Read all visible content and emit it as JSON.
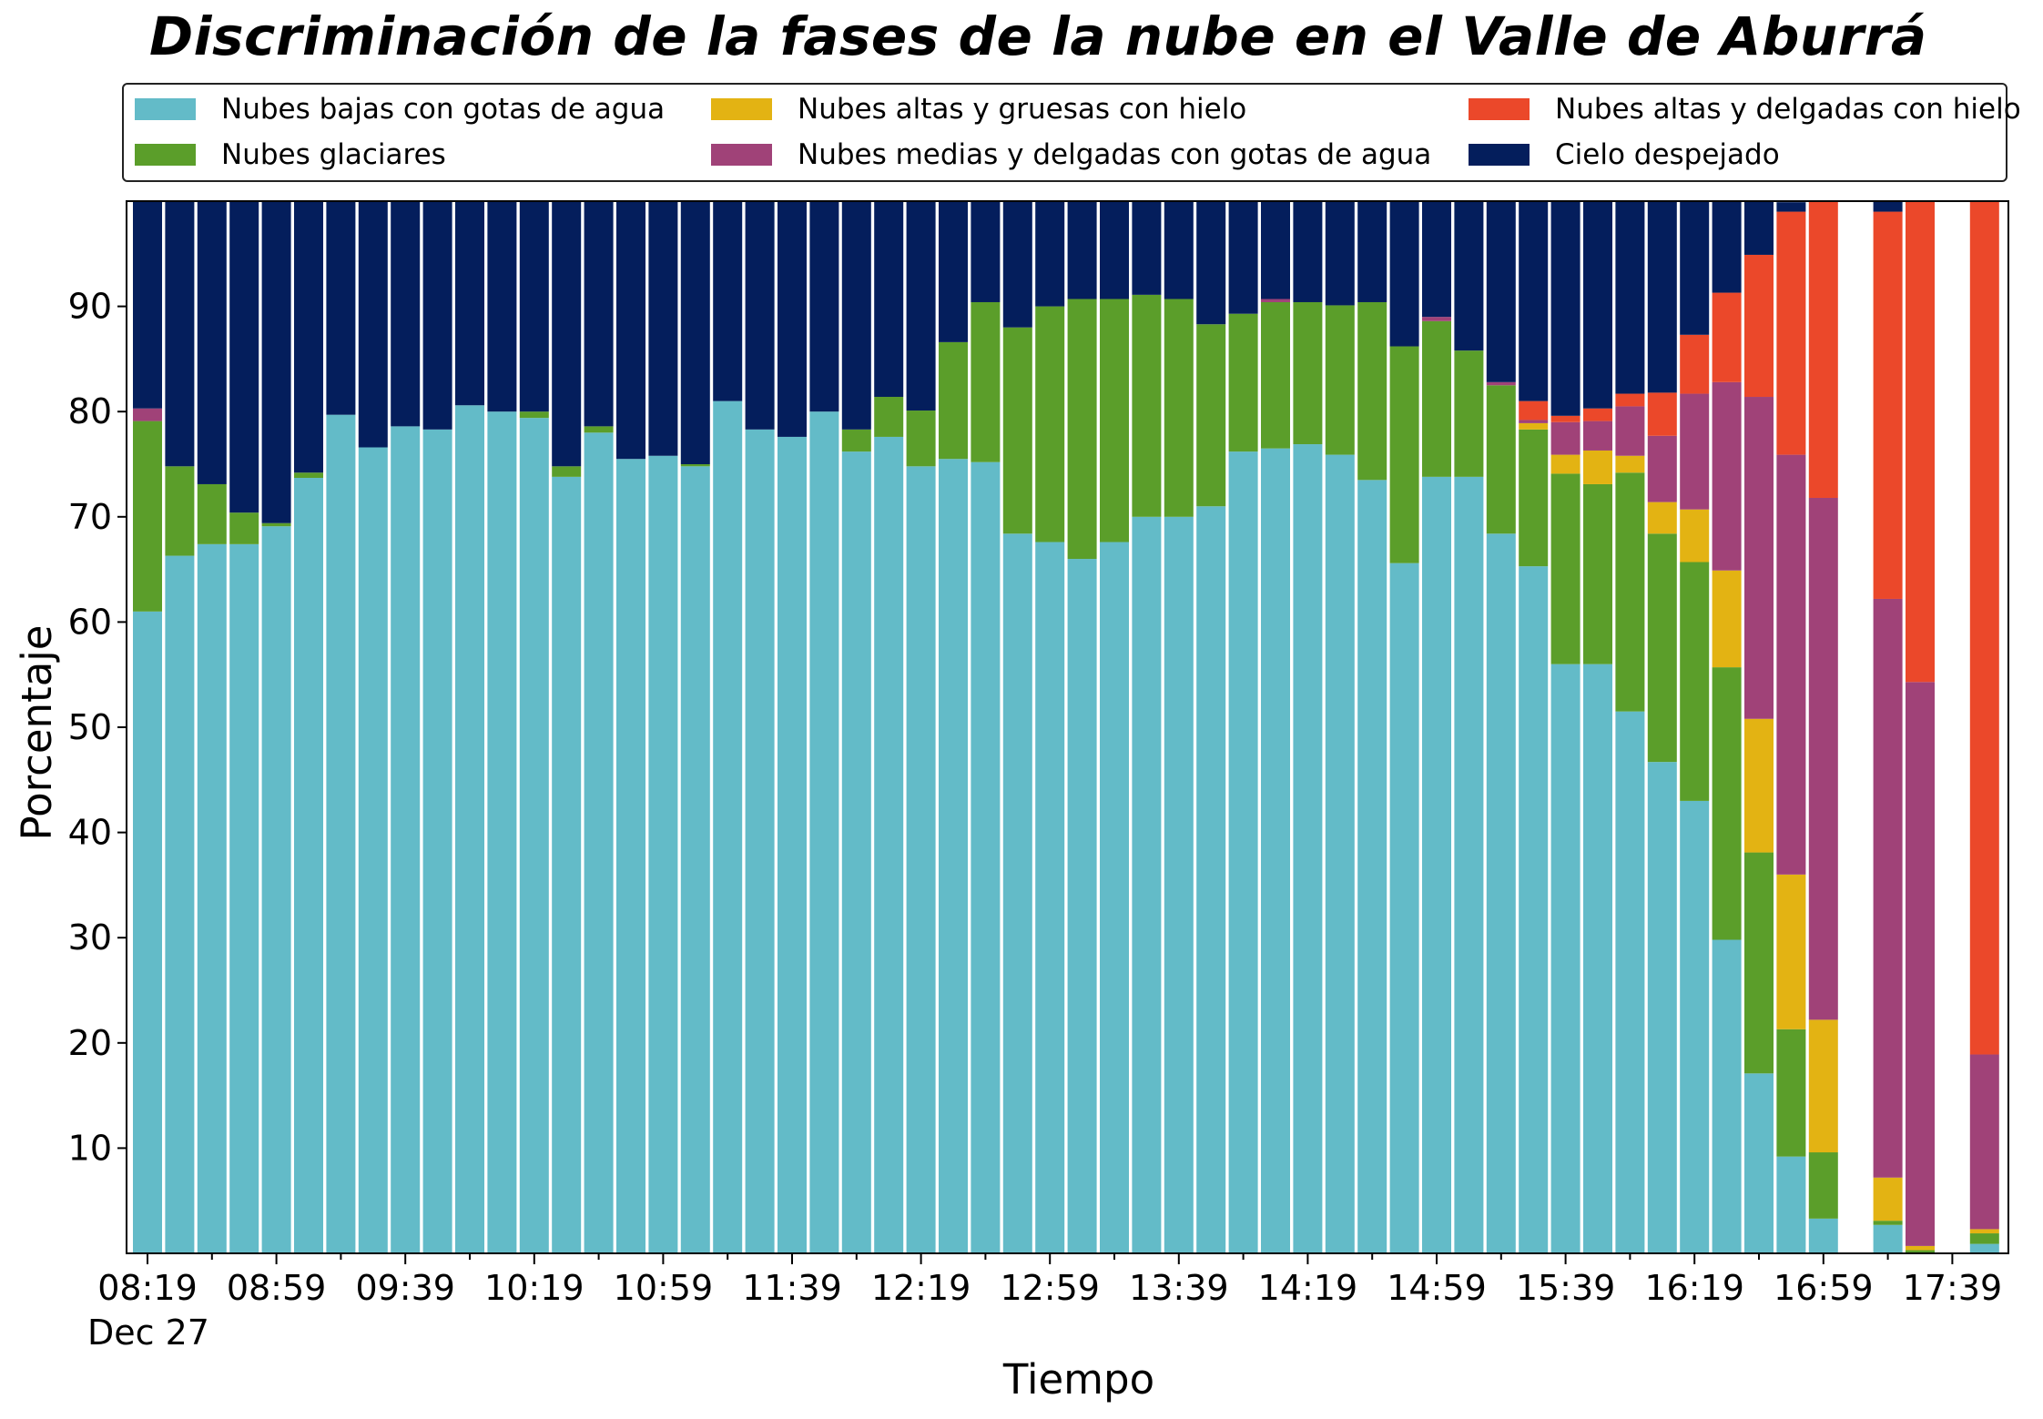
{
  "chart_data": {
    "type": "bar",
    "stacked": true,
    "title": "Discriminación de la fases de la nube en el Valle de Aburrá",
    "xlabel": "Tiempo",
    "ylabel": "Porcentaje",
    "ylim": [
      0,
      100
    ],
    "yticks": [
      10,
      20,
      30,
      40,
      50,
      60,
      70,
      80,
      90
    ],
    "date_label": "Dec 27",
    "xtick_labels": [
      "08:19",
      "08:59",
      "09:39",
      "10:19",
      "10:59",
      "11:39",
      "12:19",
      "12:59",
      "13:39",
      "14:19",
      "14:59",
      "15:39",
      "16:19",
      "16:59",
      "17:39"
    ],
    "grid": false,
    "legend_position": "top",
    "categories": [
      "08:19",
      "08:29",
      "08:39",
      "08:49",
      "08:59",
      "09:09",
      "09:19",
      "09:29",
      "09:39",
      "09:49",
      "09:59",
      "10:09",
      "10:19",
      "10:29",
      "10:39",
      "10:49",
      "10:59",
      "11:09",
      "11:19",
      "11:29",
      "11:39",
      "11:49",
      "11:59",
      "12:09",
      "12:19",
      "12:29",
      "12:39",
      "12:49",
      "12:59",
      "13:09",
      "13:19",
      "13:29",
      "13:39",
      "13:49",
      "13:59",
      "14:09",
      "14:19",
      "14:29",
      "14:39",
      "14:49",
      "14:59",
      "15:09",
      "15:19",
      "15:29",
      "15:39",
      "15:49",
      "15:59",
      "16:09",
      "16:19",
      "16:29",
      "16:39",
      "16:49",
      "16:59",
      "17:09",
      "17:19",
      "17:29",
      "17:39",
      "17:49"
    ],
    "series": [
      {
        "name": "Nubes bajas con gotas de agua",
        "color": "#63bbc8",
        "values": [
          61.0,
          66.3,
          67.4,
          67.4,
          69.1,
          73.7,
          79.7,
          76.6,
          78.6,
          78.3,
          80.6,
          80.0,
          79.4,
          73.8,
          78.0,
          75.5,
          75.8,
          74.8,
          81.0,
          78.3,
          77.6,
          80.0,
          76.2,
          77.6,
          74.8,
          75.5,
          75.2,
          68.4,
          67.6,
          66.0,
          67.6,
          70.0,
          70.0,
          71.0,
          76.2,
          76.5,
          76.9,
          75.9,
          73.5,
          65.6,
          73.8,
          73.8,
          68.4,
          65.3,
          56.0,
          56.0,
          51.5,
          46.7,
          43.0,
          29.8,
          17.1,
          9.2,
          3.3,
          null,
          2.7,
          0.0,
          null,
          0.9
        ]
      },
      {
        "name": "Nubes glaciares",
        "color": "#5b9e2a",
        "values": [
          18.1,
          8.5,
          5.7,
          3.0,
          0.3,
          0.5,
          0,
          0,
          0,
          0,
          0,
          0,
          0.6,
          1.0,
          0.6,
          0,
          0,
          0.2,
          0,
          0,
          0,
          0,
          2.1,
          3.8,
          5.3,
          11.1,
          15.2,
          19.6,
          22.4,
          24.7,
          23.1,
          21.1,
          20.7,
          17.3,
          13.1,
          13.9,
          13.5,
          14.2,
          16.9,
          20.6,
          14.8,
          12.0,
          14.1,
          13.0,
          18.1,
          17.1,
          22.7,
          21.7,
          22.7,
          25.9,
          21.0,
          12.1,
          6.3,
          null,
          0.4,
          0.3,
          null,
          1.0
        ]
      },
      {
        "name": "Nubes altas y gruesas con hielo",
        "color": "#e3b313",
        "values": [
          0,
          0,
          0,
          0,
          0,
          0,
          0,
          0,
          0,
          0,
          0,
          0,
          0,
          0,
          0,
          0,
          0,
          0,
          0,
          0,
          0,
          0,
          0,
          0,
          0,
          0,
          0,
          0,
          0,
          0,
          0,
          0,
          0,
          0,
          0,
          0,
          0,
          0,
          0,
          0,
          0,
          0,
          0,
          0.6,
          1.8,
          3.2,
          1.6,
          3.0,
          5.0,
          9.2,
          12.7,
          14.7,
          12.6,
          null,
          4.1,
          0.4,
          null,
          0.4
        ]
      },
      {
        "name": "Nubes medias y delgadas con gotas de agua",
        "color": "#a04278",
        "values": [
          1.2,
          0,
          0,
          0,
          0,
          0,
          0,
          0,
          0,
          0,
          0,
          0,
          0,
          0,
          0,
          0,
          0,
          0,
          0,
          0,
          0,
          0,
          0,
          0,
          0,
          0,
          0,
          0,
          0,
          0,
          0,
          0,
          0,
          0,
          0,
          0.3,
          0,
          0,
          0,
          0,
          0.4,
          0,
          0.3,
          0.3,
          3.1,
          2.8,
          4.7,
          6.3,
          11.0,
          17.9,
          30.6,
          39.9,
          49.6,
          null,
          55.0,
          53.6,
          null,
          16.6
        ]
      },
      {
        "name": "Nubes altas y delgadas con hielo",
        "color": "#eb482a",
        "values": [
          0,
          0,
          0,
          0,
          0,
          0,
          0,
          0,
          0,
          0,
          0,
          0,
          0,
          0,
          0,
          0,
          0,
          0,
          0,
          0,
          0,
          0,
          0,
          0,
          0,
          0,
          0,
          0,
          0,
          0,
          0,
          0,
          0,
          0,
          0,
          0,
          0,
          0,
          0,
          0,
          0,
          0,
          0,
          1.8,
          0.6,
          1.2,
          1.2,
          4.1,
          5.6,
          8.5,
          13.5,
          23.1,
          28.2,
          null,
          36.8,
          45.7,
          null,
          81.1
        ]
      },
      {
        "name": "Cielo despejado",
        "color": "#041e5c",
        "values": [
          19.7,
          25.2,
          26.9,
          29.6,
          30.6,
          25.8,
          20.3,
          23.4,
          21.4,
          21.7,
          19.4,
          20.0,
          20.0,
          25.2,
          21.4,
          24.5,
          24.2,
          25.0,
          19.0,
          21.7,
          22.4,
          20.0,
          21.7,
          18.6,
          19.9,
          13.4,
          9.6,
          12.0,
          10.0,
          9.3,
          9.3,
          8.9,
          9.3,
          11.7,
          10.7,
          9.3,
          9.6,
          9.9,
          9.6,
          13.8,
          11.0,
          14.2,
          17.2,
          19.0,
          20.4,
          19.7,
          18.3,
          18.2,
          12.7,
          8.7,
          5.1,
          0.9,
          0,
          null,
          1.0,
          0,
          null,
          0
        ]
      }
    ]
  }
}
